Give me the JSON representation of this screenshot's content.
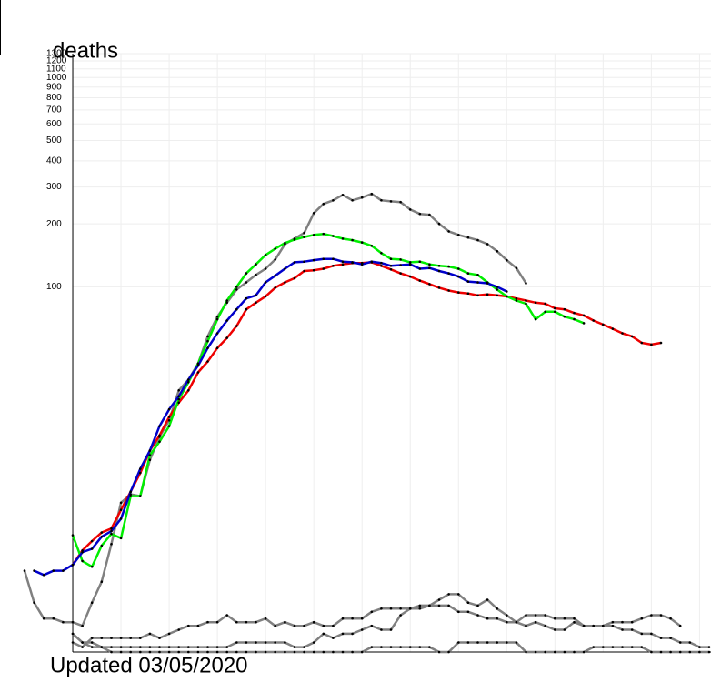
{
  "chart_data": {
    "type": "line",
    "title": "deaths",
    "footer": "Updated 03/05/2020",
    "log_scale": true,
    "grid": true,
    "xlim": [
      -5,
      66
    ],
    "xticks": [
      0,
      5,
      10,
      15,
      20,
      25,
      30,
      35,
      40,
      45,
      50,
      55,
      60,
      65
    ],
    "ylim": [
      1.8,
      1300
    ],
    "yticks": [
      100,
      200,
      300,
      400,
      500,
      600,
      700,
      800,
      900,
      1000,
      1100,
      1200,
      1300
    ],
    "x": [
      -5,
      -4,
      -3,
      -2,
      -1,
      0,
      1,
      2,
      3,
      4,
      5,
      6,
      7,
      8,
      9,
      10,
      11,
      12,
      13,
      14,
      15,
      16,
      17,
      18,
      19,
      20,
      21,
      22,
      23,
      24,
      25,
      26,
      27,
      28,
      29,
      30,
      31,
      32,
      33,
      34,
      35,
      36,
      37,
      38,
      39,
      40,
      41,
      42,
      43,
      44,
      45,
      46,
      47,
      48,
      49,
      50,
      51,
      52,
      53,
      54,
      55,
      56,
      57,
      58,
      59,
      60,
      61,
      62,
      63,
      64,
      65,
      66
    ],
    "series": [
      {
        "color": "#808080",
        "values": [
          4.4,
          3.1,
          2.6,
          2.6,
          2.5,
          2.5,
          2.4,
          3.1,
          3.9,
          5.9,
          9.3,
          10.2,
          10,
          14.9,
          19.2,
          23,
          32,
          36,
          43,
          58,
          72,
          84,
          97,
          105,
          114,
          122,
          135,
          160,
          170,
          181,
          225,
          249,
          259,
          275,
          259,
          267,
          278,
          259,
          256,
          254,
          234,
          223,
          221,
          200,
          184,
          177,
          172,
          167,
          160,
          148,
          134,
          123,
          104,
          null,
          null,
          null,
          null,
          null,
          null,
          null,
          null,
          null,
          null,
          null,
          null,
          null,
          null,
          null,
          null,
          null,
          null,
          null
        ]
      },
      {
        "color": "#808080",
        "values": [
          null,
          null,
          null,
          null,
          null,
          2.0,
          1.9,
          2.1,
          2.1,
          2.1,
          2.1,
          2.1,
          2.1,
          2.2,
          2.1,
          2.2,
          2.3,
          2.4,
          2.4,
          2.5,
          2.5,
          2.7,
          2.5,
          2.5,
          2.5,
          2.6,
          2.4,
          2.5,
          2.4,
          2.4,
          2.5,
          2.4,
          2.4,
          2.6,
          2.6,
          2.6,
          2.8,
          2.9,
          2.9,
          2.9,
          2.9,
          2.9,
          3.0,
          3.2,
          3.4,
          3.4,
          3.1,
          3.0,
          3.2,
          2.9,
          2.7,
          2.5,
          2.7,
          2.7,
          2.7,
          2.6,
          2.6,
          2.6,
          2.4,
          2.4,
          2.4,
          2.5,
          2.5,
          2.5,
          2.6,
          2.7,
          2.7,
          2.6,
          2.4,
          null,
          null,
          null
        ]
      },
      {
        "color": "#808080",
        "values": [
          null,
          null,
          null,
          null,
          null,
          2.2,
          2.0,
          2.0,
          1.9,
          1.9,
          1.9,
          1.9,
          1.9,
          1.9,
          1.9,
          1.9,
          1.9,
          1.9,
          1.9,
          1.9,
          1.9,
          1.9,
          2.0,
          2.0,
          2.0,
          2.0,
          2.0,
          2.0,
          1.9,
          1.9,
          2.0,
          2.2,
          2.1,
          2.2,
          2.2,
          2.3,
          2.4,
          2.3,
          2.3,
          2.7,
          2.9,
          3.0,
          3.0,
          3.0,
          3.0,
          2.8,
          2.8,
          2.7,
          2.6,
          2.6,
          2.5,
          2.5,
          2.4,
          2.5,
          2.4,
          2.3,
          2.3,
          2.5,
          2.4,
          2.4,
          2.4,
          2.4,
          2.3,
          2.3,
          2.2,
          2.2,
          2.1,
          2.1,
          2.0,
          2.0,
          1.9,
          1.9
        ]
      },
      {
        "color": "#808080",
        "values": [
          null,
          null,
          null,
          null,
          null,
          2.2,
          2.0,
          1.9,
          1.9,
          1.8,
          1.8,
          1.8,
          1.8,
          1.8,
          1.8,
          1.8,
          1.8,
          1.8,
          1.8,
          1.8,
          1.8,
          1.8,
          1.8,
          1.8,
          1.8,
          1.8,
          1.8,
          1.8,
          1.8,
          1.8,
          1.8,
          1.8,
          1.8,
          1.8,
          1.8,
          1.8,
          1.9,
          1.9,
          1.9,
          1.9,
          1.9,
          1.9,
          1.9,
          1.8,
          1.8,
          2.0,
          2.0,
          2.0,
          2.0,
          2.0,
          2.0,
          2.0,
          1.8,
          1.8,
          1.8,
          1.8,
          1.8,
          1.8,
          1.8,
          1.9,
          1.9,
          1.9,
          1.9,
          1.9,
          1.9,
          1.8,
          1.8,
          1.8,
          1.8,
          1.8,
          1.8,
          1.8
        ]
      },
      {
        "color": "#ee0000",
        "values": [
          null,
          null,
          null,
          null,
          null,
          4.7,
          5.5,
          6.1,
          6.7,
          7.0,
          8.6,
          10.5,
          12.9,
          16.5,
          19.5,
          23.9,
          28,
          32,
          39,
          44,
          51,
          57,
          65,
          78,
          84,
          90,
          99,
          105,
          110,
          119,
          120,
          122,
          126,
          128,
          130,
          130,
          131,
          126,
          121,
          116,
          112,
          107,
          103,
          99,
          96,
          94,
          93,
          91,
          92,
          91,
          90,
          88,
          86,
          84,
          83,
          79,
          78,
          75,
          73,
          69,
          66,
          63,
          60,
          58,
          54,
          53,
          54,
          null,
          null,
          null,
          null,
          null
        ]
      },
      {
        "color": "#00ee00",
        "values": [
          null,
          null,
          null,
          null,
          null,
          6.5,
          4.9,
          4.6,
          5.8,
          6.6,
          6.3,
          10,
          10,
          15.7,
          18.2,
          21.6,
          29,
          35,
          43,
          55,
          70,
          86,
          100,
          116,
          128,
          142,
          152,
          162,
          168,
          173,
          177,
          179,
          175,
          170,
          167,
          163,
          157,
          145,
          136,
          135,
          131,
          132,
          128,
          126,
          125,
          122,
          116,
          114,
          105,
          97,
          90,
          86,
          83,
          70,
          76,
          76,
          72,
          70,
          67,
          null,
          null,
          null,
          null,
          null,
          null,
          null,
          null,
          null,
          null,
          null,
          null,
          null
        ]
      },
      {
        "color": "#0000cc",
        "values": [
          null,
          4.4,
          4.2,
          4.4,
          4.4,
          4.7,
          5.4,
          5.6,
          6.4,
          6.8,
          7.8,
          10.5,
          13.5,
          16.5,
          21.6,
          26,
          30,
          36,
          42,
          51,
          60,
          69,
          78,
          88,
          91,
          105,
          113,
          122,
          131,
          132,
          134,
          136,
          136,
          132,
          131,
          128,
          132,
          130,
          126,
          127,
          128,
          122,
          123,
          119,
          116,
          112,
          106,
          105,
          104,
          100,
          95,
          null,
          null,
          null,
          null,
          null,
          null,
          null,
          null,
          null,
          null,
          null,
          null,
          null,
          null,
          null,
          null,
          null,
          null,
          null,
          null,
          null
        ]
      }
    ]
  }
}
